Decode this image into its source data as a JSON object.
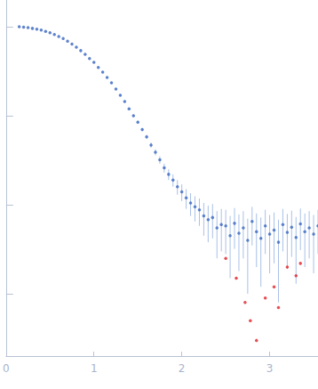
{
  "chart_data": {
    "type": "scatter",
    "log": "y",
    "grid": false,
    "tick_labels": "x",
    "xlim": [
      0,
      3.55
    ],
    "xticks": [
      0,
      1,
      2,
      3
    ],
    "ylim": [
      0.0002,
      2
    ],
    "yticks": [
      0.001,
      0.01,
      0.1,
      1
    ],
    "series": [
      {
        "color": "#3a66c0",
        "marker": "circle",
        "x": [
          0.15,
          0.2,
          0.25,
          0.3,
          0.35,
          0.4,
          0.45,
          0.5,
          0.55,
          0.6,
          0.65,
          0.7,
          0.75,
          0.8,
          0.85,
          0.9,
          0.95,
          1.0,
          1.05,
          1.1,
          1.15,
          1.2,
          1.25,
          1.3,
          1.35,
          1.4,
          1.45,
          1.5,
          1.55,
          1.6,
          1.65,
          1.7,
          1.75,
          1.8,
          1.85,
          1.9,
          1.95,
          2.0,
          2.05,
          2.1,
          2.15,
          2.2,
          2.25,
          2.3,
          2.35,
          2.4,
          2.45,
          2.5,
          2.55,
          2.6,
          2.65,
          2.7,
          2.75,
          2.8,
          2.85,
          2.9,
          2.95,
          3.0,
          3.05,
          3.1,
          3.15,
          3.2,
          3.25,
          3.3,
          3.35,
          3.4,
          3.45,
          3.5,
          3.55
        ],
        "values": [
          1.0,
          0.99,
          0.98,
          0.96,
          0.94,
          0.92,
          0.89,
          0.86,
          0.82,
          0.78,
          0.74,
          0.69,
          0.64,
          0.59,
          0.54,
          0.49,
          0.44,
          0.4,
          0.35,
          0.31,
          0.27,
          0.235,
          0.2,
          0.17,
          0.145,
          0.12,
          0.1,
          0.085,
          0.07,
          0.058,
          0.047,
          0.039,
          0.032,
          0.026,
          0.022,
          0.019,
          0.016,
          0.014,
          0.012,
          0.0105,
          0.0095,
          0.0088,
          0.0075,
          0.0068,
          0.0072,
          0.0055,
          0.006,
          0.0058,
          0.0045,
          0.0062,
          0.0048,
          0.0055,
          0.004,
          0.0065,
          0.005,
          0.0042,
          0.0058,
          0.0047,
          0.0052,
          0.0038,
          0.006,
          0.0049,
          0.0056,
          0.0043,
          0.0061,
          0.005,
          0.0055,
          0.0047,
          0.0058
        ],
        "errors": [
          0.005,
          0.005,
          0.005,
          0.005,
          0.005,
          0.005,
          0.005,
          0.005,
          0.005,
          0.005,
          0.005,
          0.005,
          0.005,
          0.005,
          0.004,
          0.004,
          0.004,
          0.004,
          0.004,
          0.004,
          0.003,
          0.003,
          0.003,
          0.003,
          0.003,
          0.003,
          0.003,
          0.003,
          0.003,
          0.003,
          0.003,
          0.003,
          0.003,
          0.003,
          0.003,
          0.003,
          0.003,
          0.003,
          0.003,
          0.003,
          0.003,
          0.003,
          0.003,
          0.003,
          0.003,
          0.003,
          0.003,
          0.003,
          0.003,
          0.003,
          0.003,
          0.003,
          0.003,
          0.003,
          0.003,
          0.003,
          0.003,
          0.003,
          0.003,
          0.003,
          0.003,
          0.003,
          0.003,
          0.003,
          0.003,
          0.003,
          0.003,
          0.003,
          0.003
        ]
      },
      {
        "color": "#e0202a",
        "marker": "circle",
        "x": [
          2.5,
          2.62,
          2.72,
          2.78,
          2.85,
          2.95,
          3.05,
          3.1,
          3.2,
          3.3,
          3.35
        ],
        "values": [
          0.0025,
          0.0015,
          0.0008,
          0.0005,
          0.0003,
          0.0009,
          0.0012,
          0.0007,
          0.002,
          0.0016,
          0.0022
        ]
      }
    ]
  }
}
